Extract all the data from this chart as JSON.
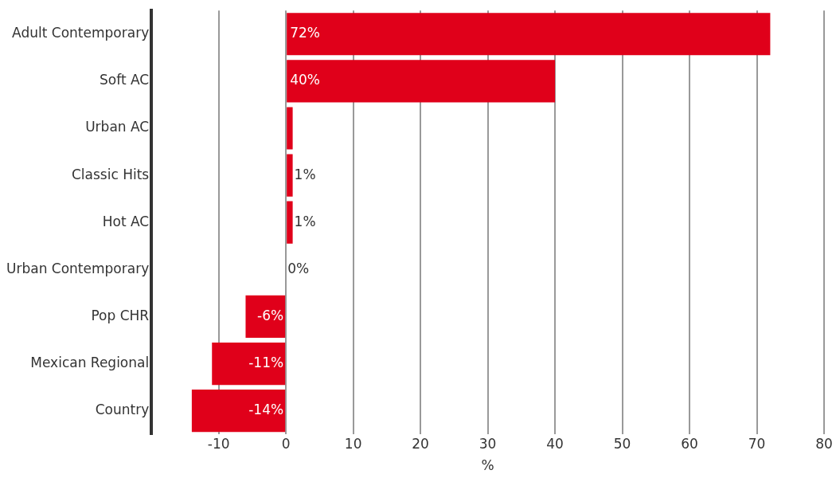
{
  "chart_data": {
    "type": "bar",
    "orientation": "horizontal",
    "xlabel": "%",
    "categories": [
      "Adult Contemporary",
      "Soft AC",
      "Urban AC",
      "Classic Hits",
      "Hot AC",
      "Urban Contemporary",
      "Pop CHR",
      "Mexican Regional",
      "Country"
    ],
    "values": [
      72,
      40,
      1,
      1,
      1,
      0,
      -6,
      -11,
      -14
    ],
    "value_labels": [
      "72%",
      "40%",
      null,
      "1%",
      "1%",
      "0%",
      "-6%",
      "-11%",
      "-14%"
    ],
    "color": "#e0001a",
    "xlim": [
      -20,
      80
    ],
    "xticks": [
      {
        "value": -20,
        "label": null
      },
      -10,
      0,
      10,
      20,
      30,
      40,
      50,
      60,
      70,
      80
    ],
    "grid": "x",
    "legend": false
  }
}
